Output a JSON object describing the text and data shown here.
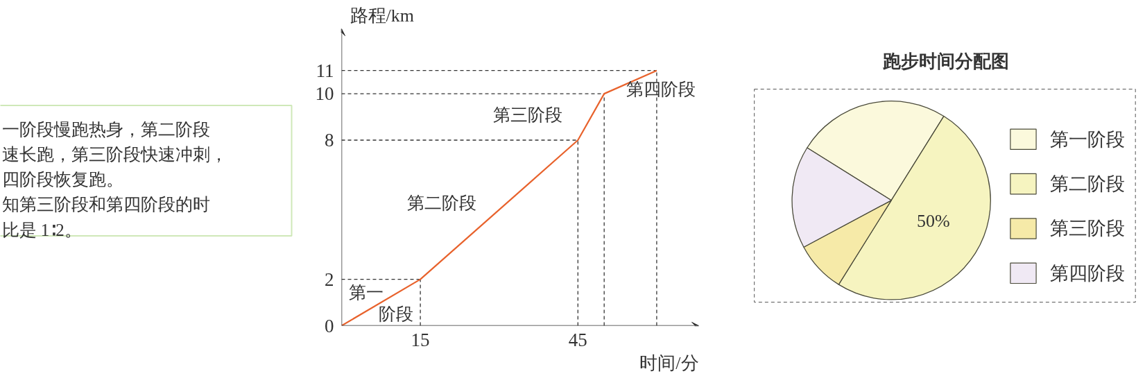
{
  "chart_data": [
    {
      "type": "other",
      "annotations": [
        "一阶段慢跑热身，第二阶段",
        "速长跑，第三阶段快速冲刺，",
        "四阶段恢复跑。",
        "知第三阶段和第四阶段的时",
        "比是 1∶2。"
      ]
    },
    {
      "type": "line",
      "xlabel": "时间/分",
      "ylabel": "路程/km",
      "x": [
        0,
        15,
        45,
        50,
        60
      ],
      "series": [
        {
          "color": "#e8622c",
          "values": [
            0,
            2,
            8,
            10,
            11
          ]
        }
      ],
      "xlim": [
        0,
        68
      ],
      "ylim": [
        0,
        12.8
      ],
      "xticks": [
        15,
        45
      ],
      "yticks": [
        0,
        2,
        8,
        10,
        11
      ],
      "grid": false,
      "line_style": "solid",
      "ref_lines": [
        {
          "axis": "x",
          "value": 15,
          "color": "#333333",
          "line_style": "dashed"
        },
        {
          "axis": "x",
          "value": 45,
          "color": "#333333",
          "line_style": "dashed"
        },
        {
          "axis": "x",
          "value": 50,
          "color": "#333333",
          "line_style": "dashed"
        },
        {
          "axis": "x",
          "value": 60,
          "color": "#333333",
          "line_style": "dashed"
        },
        {
          "axis": "y",
          "value": 2,
          "color": "#333333",
          "line_style": "dashed"
        },
        {
          "axis": "y",
          "value": 8,
          "color": "#333333",
          "line_style": "dashed"
        },
        {
          "axis": "y",
          "value": 10,
          "color": "#333333",
          "line_style": "dashed"
        },
        {
          "axis": "y",
          "value": 11,
          "color": "#333333",
          "line_style": "dashed"
        }
      ],
      "annotations": [
        "第一",
        "阶段",
        "第二阶段",
        "第三阶段",
        "第四阶段"
      ]
    },
    {
      "type": "pie",
      "title": "跑步时间分配图",
      "categories": [
        "第一阶段",
        "第二阶段",
        "第三阶段",
        "第四阶段"
      ],
      "values": [
        25,
        50,
        8.3,
        16.7
      ],
      "colors": [
        "#fbf9dc",
        "#f6f4c0",
        "#f6eaa8",
        "#f0e9f4"
      ],
      "value_labels": [
        null,
        "50%",
        null,
        null
      ],
      "legend": "right"
    }
  ]
}
